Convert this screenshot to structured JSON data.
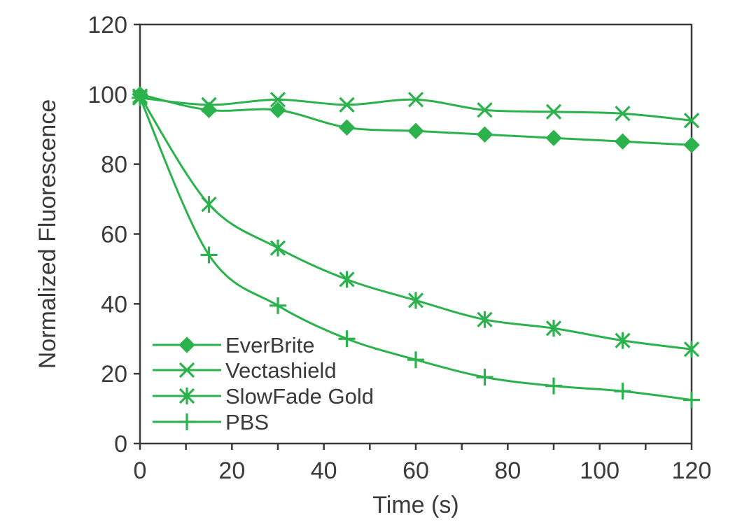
{
  "chart_data": {
    "type": "line",
    "title": "",
    "xlabel": "Time (s)",
    "ylabel": "Normalized Fluorescence",
    "xlim": [
      0,
      120
    ],
    "ylim": [
      0,
      120
    ],
    "xticks": [
      0,
      20,
      40,
      60,
      80,
      100,
      120
    ],
    "yticks": [
      0,
      20,
      40,
      60,
      80,
      100,
      120
    ],
    "grid": false,
    "legend_position": "bottom-left",
    "x": [
      0,
      15,
      30,
      45,
      60,
      75,
      90,
      105,
      120
    ],
    "series": [
      {
        "name": "EverBrite",
        "marker": "diamond",
        "values": [
          100,
          95.5,
          95.5,
          90.5,
          89.5,
          88.5,
          87.5,
          86.5,
          85.5
        ]
      },
      {
        "name": "Vectashield",
        "marker": "x",
        "values": [
          99,
          97,
          98.5,
          97,
          98.5,
          95.5,
          95,
          94.5,
          92.5
        ]
      },
      {
        "name": "SlowFade Gold",
        "marker": "asterisk",
        "values": [
          99.5,
          68.5,
          56,
          47,
          41,
          35.5,
          33,
          29.5,
          27
        ]
      },
      {
        "name": "PBS",
        "marker": "plus",
        "values": [
          99,
          54,
          39.5,
          30,
          24,
          19,
          16.5,
          15,
          12.5
        ]
      }
    ],
    "colors": {
      "series": "#2bb24c",
      "axis": "#3a3a3a",
      "text": "#3a3a3a"
    }
  }
}
